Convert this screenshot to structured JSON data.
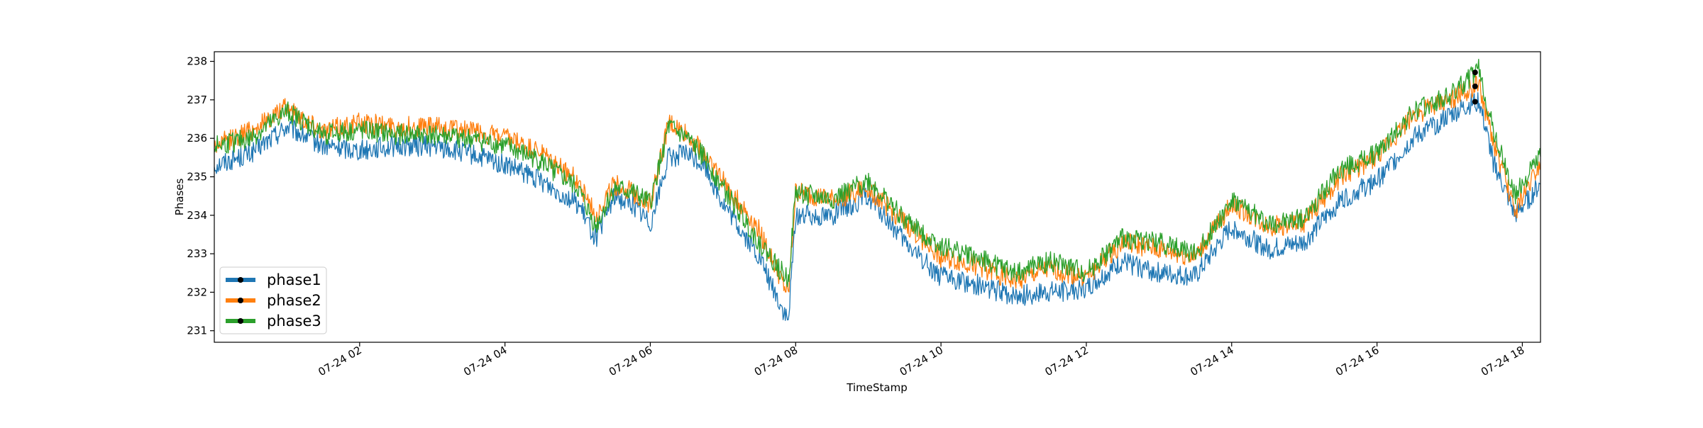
{
  "chart_data": {
    "type": "line",
    "title": "",
    "xlabel": "TimeStamp",
    "ylabel": "Phases",
    "grid": false,
    "legend_position": "lower-left",
    "xlim": [
      "07-24 00:00",
      "07-24 18:15"
    ],
    "ylim": [
      230.7,
      238.25
    ],
    "x_ticks": [
      "07-24 02",
      "07-24 04",
      "07-24 06",
      "07-24 08",
      "07-24 10",
      "07-24 12",
      "07-24 14",
      "07-24 16",
      "07-24 18"
    ],
    "y_ticks": [
      "231",
      "232",
      "233",
      "234",
      "235",
      "236",
      "237",
      "238"
    ],
    "x_hours": [
      0,
      0.5,
      1,
      1.5,
      2,
      2.5,
      3,
      3.5,
      4,
      4.5,
      5,
      5.25,
      5.5,
      5.75,
      6,
      6.25,
      6.5,
      6.75,
      7,
      7.5,
      7.9,
      8,
      8.5,
      9,
      9.5,
      10,
      10.5,
      11,
      11.5,
      12,
      12.5,
      13,
      13.5,
      14,
      14.5,
      15,
      15.5,
      16,
      16.5,
      17,
      17.4,
      17.6,
      17.9,
      18.25
    ],
    "series": [
      {
        "name": "phase1",
        "color": "#1f77b4",
        "values": [
          235.3,
          235.6,
          236.3,
          235.8,
          235.7,
          235.8,
          235.8,
          235.6,
          235.3,
          234.9,
          234.3,
          233.4,
          234.5,
          234.3,
          233.8,
          235.5,
          235.6,
          235.3,
          234.3,
          232.9,
          231.2,
          234.0,
          234.0,
          234.5,
          233.3,
          232.4,
          232.2,
          231.9,
          232.0,
          232.1,
          232.8,
          232.5,
          232.4,
          233.7,
          233.1,
          233.3,
          234.4,
          234.9,
          236.0,
          236.6,
          237.0,
          235.4,
          234.0,
          234.8
        ]
      },
      {
        "name": "phase2",
        "color": "#ff7f0e",
        "values": [
          235.8,
          236.2,
          236.8,
          236.2,
          236.4,
          236.3,
          236.3,
          236.2,
          236.0,
          235.6,
          234.9,
          234.0,
          234.8,
          234.6,
          234.3,
          236.4,
          236.1,
          235.6,
          234.9,
          233.6,
          231.9,
          234.6,
          234.4,
          234.7,
          233.8,
          232.9,
          232.7,
          232.3,
          232.6,
          232.4,
          233.3,
          233.1,
          232.9,
          234.3,
          233.7,
          233.8,
          235.0,
          235.5,
          236.6,
          237.0,
          237.4,
          235.9,
          234.1,
          235.4
        ]
      },
      {
        "name": "phase3",
        "color": "#2ca02c",
        "values": [
          235.8,
          236.0,
          236.7,
          236.1,
          236.2,
          236.1,
          236.1,
          236.0,
          235.8,
          235.4,
          234.7,
          233.7,
          234.7,
          234.6,
          234.3,
          236.3,
          236.0,
          235.5,
          234.7,
          233.3,
          232.3,
          234.6,
          234.4,
          234.9,
          233.9,
          233.2,
          232.9,
          232.5,
          232.8,
          232.5,
          233.4,
          233.3,
          233.0,
          234.4,
          233.8,
          233.9,
          235.2,
          235.6,
          236.7,
          237.1,
          237.8,
          236.2,
          234.5,
          235.6
        ]
      }
    ]
  }
}
